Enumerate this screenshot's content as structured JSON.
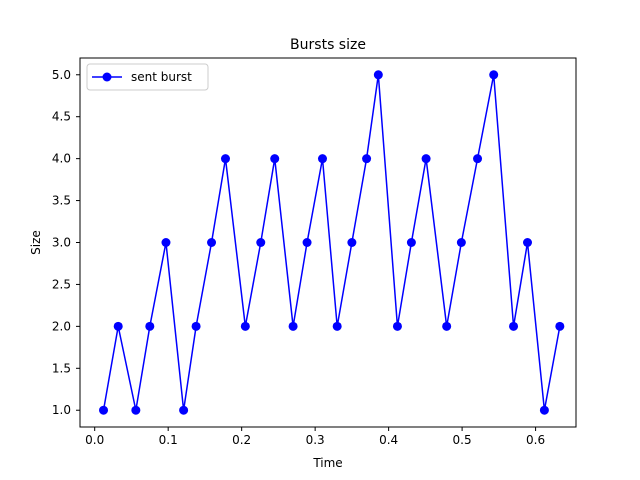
{
  "chart_data": {
    "type": "line",
    "title": "Bursts size",
    "xlabel": "Time",
    "ylabel": "Size",
    "xlim": [
      -0.02,
      0.655
    ],
    "ylim": [
      0.8,
      5.2
    ],
    "xticks": [
      0.0,
      0.1,
      0.2,
      0.3,
      0.4,
      0.5,
      0.6
    ],
    "xtick_labels": [
      "0.0",
      "0.1",
      "0.2",
      "0.3",
      "0.4",
      "0.5",
      "0.6"
    ],
    "yticks": [
      1.0,
      1.5,
      2.0,
      2.5,
      3.0,
      3.5,
      4.0,
      4.5,
      5.0
    ],
    "ytick_labels": [
      "1.0",
      "1.5",
      "2.0",
      "2.5",
      "3.0",
      "3.5",
      "4.0",
      "4.5",
      "5.0"
    ],
    "grid": false,
    "legend_position": "top-left",
    "series": [
      {
        "name": "sent burst",
        "color": "#0000ff",
        "marker": "circle",
        "x": [
          0.012,
          0.032,
          0.056,
          0.075,
          0.097,
          0.121,
          0.138,
          0.159,
          0.178,
          0.205,
          0.226,
          0.245,
          0.27,
          0.289,
          0.31,
          0.33,
          0.35,
          0.37,
          0.386,
          0.412,
          0.431,
          0.451,
          0.479,
          0.499,
          0.521,
          0.543,
          0.57,
          0.589,
          0.612,
          0.633
        ],
        "y": [
          1,
          2,
          1,
          2,
          3,
          1,
          2,
          3,
          4,
          2,
          3,
          4,
          2,
          3,
          4,
          2,
          3,
          4,
          5,
          2,
          3,
          4,
          2,
          3,
          4,
          5,
          2,
          3,
          1,
          2
        ]
      }
    ]
  }
}
